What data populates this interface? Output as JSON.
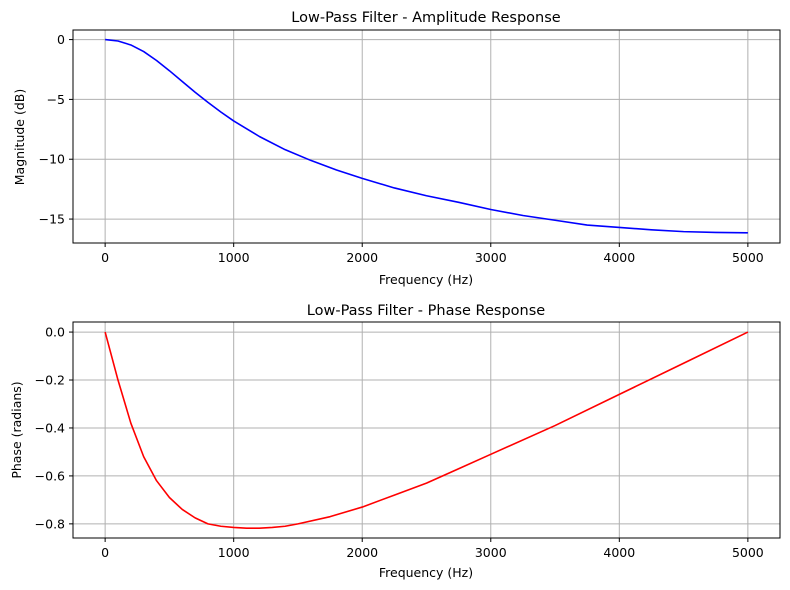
{
  "chart_data": [
    {
      "type": "line",
      "title": "Low-Pass Filter - Amplitude Response",
      "xlabel": "Frequency (Hz)",
      "ylabel": "Magnitude (dB)",
      "xlim": [
        -250,
        5250
      ],
      "ylim": [
        -17.0,
        0.8
      ],
      "xticks": [
        0,
        1000,
        2000,
        3000,
        4000,
        5000
      ],
      "yticks": [
        0,
        -5,
        -10,
        -15
      ],
      "xtick_labels": [
        "0",
        "1000",
        "2000",
        "3000",
        "4000",
        "5000"
      ],
      "ytick_labels": [
        "0",
        "−5",
        "−10",
        "−15"
      ],
      "grid": true,
      "series": [
        {
          "color": "#0000ff",
          "x": [
            0,
            100,
            200,
            300,
            400,
            500,
            600,
            700,
            800,
            900,
            1000,
            1200,
            1400,
            1600,
            1800,
            2000,
            2250,
            2500,
            2750,
            3000,
            3250,
            3500,
            3750,
            4000,
            4250,
            4500,
            4750,
            5000
          ],
          "y": [
            0.0,
            -0.12,
            -0.45,
            -1.0,
            -1.75,
            -2.6,
            -3.5,
            -4.4,
            -5.25,
            -6.05,
            -6.8,
            -8.1,
            -9.2,
            -10.1,
            -10.9,
            -11.6,
            -12.4,
            -13.05,
            -13.6,
            -14.2,
            -14.7,
            -15.1,
            -15.5,
            -15.7,
            -15.9,
            -16.05,
            -16.12,
            -16.15
          ]
        }
      ]
    },
    {
      "type": "line",
      "title": "Low-Pass Filter - Phase Response",
      "xlabel": "Frequency (Hz)",
      "ylabel": "Phase (radians)",
      "xlim": [
        -250,
        5250
      ],
      "ylim": [
        -0.859,
        0.042
      ],
      "xticks": [
        0,
        1000,
        2000,
        3000,
        4000,
        5000
      ],
      "yticks": [
        0.0,
        -0.2,
        -0.4,
        -0.6,
        -0.8
      ],
      "xtick_labels": [
        "0",
        "1000",
        "2000",
        "3000",
        "4000",
        "5000"
      ],
      "ytick_labels": [
        "0.0",
        "−0.2",
        "−0.4",
        "−0.6",
        "−0.8"
      ],
      "grid": true,
      "series": [
        {
          "color": "#ff0000",
          "x": [
            0,
            100,
            200,
            300,
            400,
            500,
            600,
            700,
            800,
            900,
            1000,
            1100,
            1200,
            1300,
            1400,
            1500,
            1750,
            2000,
            2250,
            2500,
            2750,
            3000,
            3500,
            4000,
            4500,
            5000
          ],
          "y": [
            0.0,
            -0.2,
            -0.38,
            -0.52,
            -0.62,
            -0.69,
            -0.74,
            -0.775,
            -0.8,
            -0.81,
            -0.815,
            -0.818,
            -0.818,
            -0.815,
            -0.81,
            -0.8,
            -0.77,
            -0.73,
            -0.68,
            -0.63,
            -0.57,
            -0.51,
            -0.39,
            -0.26,
            -0.13,
            0.0
          ]
        }
      ]
    }
  ]
}
